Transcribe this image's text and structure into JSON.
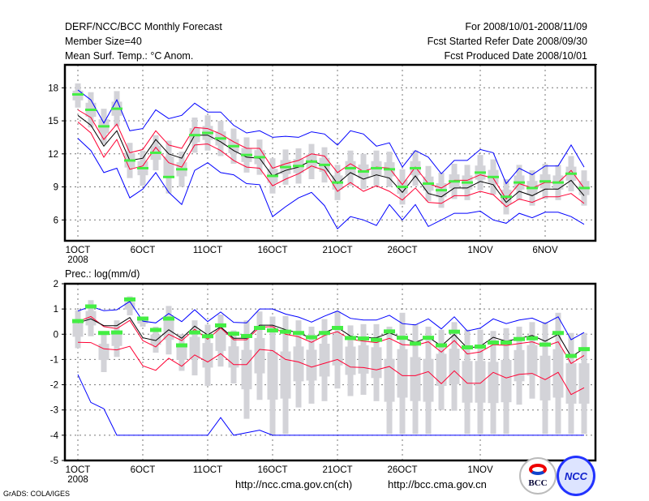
{
  "header": {
    "title": "DERF/NCC/BCC Monthly Forecast",
    "member_size": "Member Size=40",
    "variable": "Mean Surf. Temp.: °C Anom.",
    "period": "For 2008/10/01-2008/11/09",
    "started": "Fcst Started Refer Date 2008/09/30",
    "produced": "Fcst Produced Date 2008/10/01"
  },
  "footer": {
    "url_ncc": "http://ncc.cma.gov.cn(ch)",
    "url_bcc": "http://bcc.cma.gov.cn",
    "credit": "GrADS: COLA/IGES",
    "logo_bcc": "BCC",
    "logo_ncc": "NCC"
  },
  "colors": {
    "max_min": "#0000ff",
    "spread": "#ff0033",
    "mean": "#000000",
    "marker": "#44ee44",
    "box": "#d3d3d8"
  },
  "chart_data": [
    {
      "type": "line",
      "title": "Mean Surf. Temp.: °C Anom.",
      "ylabel": "",
      "ylim": [
        4.1,
        20.1
      ],
      "yticks": [
        6,
        9,
        12,
        15,
        18
      ],
      "ytick_labels": [
        "6",
        "9",
        "12",
        "15",
        "18"
      ],
      "xtick_days": [
        1,
        6,
        11,
        16,
        21,
        26,
        32,
        37
      ],
      "xtick_labels": [
        "1OCT",
        "6OCT",
        "11OCT",
        "16OCT",
        "21OCT",
        "26OCT",
        "1NOV",
        "6NOV"
      ],
      "xtick_year": "2008",
      "grid": true,
      "days": 40,
      "series": [
        {
          "name": "max",
          "color": "#0000ff",
          "values": [
            17.8,
            16.9,
            14.8,
            16.9,
            14.1,
            14.3,
            16.0,
            15.2,
            15.5,
            16.6,
            15.8,
            15.8,
            14.6,
            13.9,
            14.1,
            13.5,
            13.6,
            13.5,
            14.0,
            13.8,
            12.8,
            14.1,
            13.8,
            12.7,
            13.0,
            10.8,
            12.3,
            11.7,
            10.2,
            11.4,
            11.4,
            12.4,
            12.1,
            9.3,
            10.7,
            10.1,
            10.9,
            10.9,
            12.8,
            10.8
          ]
        },
        {
          "name": "upper",
          "color": "#ff0033",
          "values": [
            16.0,
            15.3,
            13.3,
            14.7,
            12.1,
            12.4,
            14.1,
            12.8,
            12.5,
            14.4,
            14.3,
            13.8,
            13.1,
            12.5,
            12.5,
            10.7,
            11.1,
            11.4,
            12.0,
            11.8,
            10.3,
            11.1,
            10.4,
            10.8,
            10.7,
            9.2,
            10.8,
            9.3,
            8.9,
            9.6,
            9.6,
            10.1,
            9.8,
            7.9,
            9.3,
            8.9,
            9.4,
            9.4,
            10.5,
            8.9
          ]
        },
        {
          "name": "mean",
          "color": "#000000",
          "values": [
            15.5,
            14.6,
            12.7,
            14.1,
            11.4,
            11.6,
            13.3,
            12.0,
            11.6,
            13.7,
            13.7,
            13.1,
            12.3,
            11.7,
            11.6,
            10.0,
            10.5,
            10.8,
            11.4,
            10.9,
            9.3,
            10.3,
            9.7,
            10.1,
            9.8,
            8.5,
            10.0,
            8.4,
            8.1,
            8.9,
            8.9,
            9.5,
            9.2,
            7.6,
            8.6,
            8.2,
            8.8,
            8.8,
            9.6,
            8.2
          ]
        },
        {
          "name": "lower",
          "color": "#ff0033",
          "values": [
            14.9,
            13.9,
            11.7,
            13.3,
            10.6,
            10.9,
            12.6,
            11.2,
            10.8,
            12.8,
            12.9,
            12.3,
            11.4,
            10.8,
            10.7,
            9.1,
            9.7,
            10.2,
            10.9,
            10.5,
            8.6,
            9.4,
            8.6,
            9.1,
            8.6,
            7.8,
            8.9,
            7.6,
            7.5,
            8.2,
            8.2,
            8.6,
            8.3,
            7.2,
            7.9,
            7.6,
            8.1,
            8.1,
            8.4,
            7.5
          ]
        },
        {
          "name": "min",
          "color": "#0000ff",
          "values": [
            13.4,
            12.3,
            10.3,
            10.7,
            8.0,
            8.8,
            10.3,
            8.5,
            7.4,
            10.5,
            11.2,
            10.3,
            10.1,
            9.3,
            9.2,
            6.3,
            7.2,
            8.0,
            8.5,
            7.3,
            5.2,
            6.3,
            6.0,
            5.5,
            7.4,
            6.0,
            7.4,
            5.4,
            6.0,
            6.6,
            6.6,
            6.8,
            6.0,
            5.7,
            6.6,
            6.2,
            6.7,
            6.7,
            6.3,
            5.6
          ]
        }
      ],
      "markers": [
        17.4,
        16.0,
        14.5,
        16.1,
        11.4,
        10.7,
        12.1,
        9.9,
        10.6,
        13.7,
        13.9,
        13.4,
        12.7,
        11.9,
        11.7,
        10.0,
        10.8,
        10.9,
        11.3,
        11.0,
        9.4,
        10.7,
        10.4,
        10.7,
        10.6,
        9.0,
        10.7,
        9.3,
        8.7,
        9.5,
        9.4,
        10.3,
        9.9,
        8.1,
        9.4,
        8.9,
        9.5,
        9.4,
        10.2,
        8.9
      ],
      "box_low": [
        16.2,
        14.4,
        12.9,
        14.5,
        9.8,
        9.1,
        10.5,
        8.4,
        9.0,
        12.1,
        12.3,
        11.8,
        11.1,
        10.3,
        10.1,
        8.4,
        9.2,
        9.3,
        9.7,
        9.4,
        7.8,
        9.1,
        8.8,
        9.1,
        9.0,
        7.4,
        9.1,
        7.7,
        7.1,
        7.9,
        7.8,
        8.7,
        8.3,
        6.5,
        7.8,
        7.3,
        7.9,
        7.8,
        8.6,
        7.3
      ],
      "box_high": [
        18.4,
        17.6,
        16.1,
        17.7,
        13.0,
        12.3,
        13.7,
        13.2,
        12.2,
        15.3,
        15.5,
        15.0,
        14.3,
        13.5,
        13.3,
        11.6,
        12.4,
        12.5,
        12.9,
        12.6,
        11.0,
        12.3,
        12.0,
        12.3,
        12.2,
        10.6,
        12.3,
        10.9,
        10.3,
        11.1,
        11.0,
        11.9,
        11.5,
        9.7,
        11.0,
        10.5,
        11.1,
        11.0,
        11.8,
        10.5
      ]
    },
    {
      "type": "line",
      "title": "Prec.: log(mm/d)",
      "ylabel": "",
      "ylim": [
        -5,
        2
      ],
      "yticks": [
        -5,
        -4,
        -3,
        -2,
        -1,
        0,
        1,
        2
      ],
      "ytick_labels": [
        "-5",
        "-4",
        "-3",
        "-2",
        "-1",
        "0",
        "1",
        "2"
      ],
      "xtick_days": [
        1,
        6,
        11,
        16,
        21,
        26,
        32
      ],
      "xtick_labels": [
        "1OCT",
        "6OCT",
        "11OCT",
        "16OCT",
        "21OCT",
        "26OCT",
        "1NOV"
      ],
      "xtick_year": "2008",
      "grid": true,
      "days": 40,
      "series": [
        {
          "name": "max",
          "color": "#0000ff",
          "values": [
            0.92,
            1.1,
            0.93,
            0.97,
            1.3,
            0.52,
            0.45,
            0.82,
            0.5,
            0.97,
            0.5,
            0.88,
            0.47,
            0.45,
            1.0,
            1.0,
            0.8,
            0.68,
            0.48,
            0.72,
            0.92,
            0.63,
            0.56,
            0.56,
            0.75,
            0.42,
            0.37,
            0.61,
            0.21,
            0.69,
            0.13,
            0.24,
            0.61,
            0.42,
            0.56,
            0.64,
            0.42,
            0.69,
            -0.22,
            0.07
          ]
        },
        {
          "name": "upper",
          "color": "#ff0033",
          "values": [
            0.5,
            0.7,
            0.3,
            0.22,
            0.55,
            -0.25,
            -0.5,
            0.0,
            -0.25,
            0.2,
            -0.2,
            0.25,
            -0.22,
            -0.22,
            0.28,
            0.3,
            0.0,
            -0.1,
            -0.32,
            -0.05,
            0.1,
            -0.2,
            -0.27,
            -0.33,
            -0.16,
            -0.41,
            -0.44,
            -0.3,
            -0.71,
            -0.25,
            -0.78,
            -0.7,
            -0.41,
            -0.44,
            -0.37,
            -0.3,
            -0.48,
            -0.3,
            -1.16,
            -0.84
          ]
        },
        {
          "name": "mean",
          "color": "#000000",
          "values": [
            0.45,
            0.61,
            0.34,
            0.34,
            0.66,
            -0.14,
            -0.25,
            0.18,
            -0.16,
            0.32,
            -0.03,
            0.29,
            -0.16,
            -0.16,
            0.36,
            0.36,
            0.18,
            0.05,
            -0.16,
            0.07,
            0.27,
            -0.07,
            -0.14,
            -0.14,
            0.05,
            -0.14,
            -0.32,
            -0.12,
            -0.46,
            -0.01,
            -0.55,
            -0.48,
            -0.12,
            -0.28,
            -0.16,
            -0.05,
            -0.28,
            -0.01,
            -0.89,
            -0.57
          ]
        },
        {
          "name": "lower",
          "color": "#ff0033",
          "values": [
            -0.32,
            -0.33,
            -0.58,
            -0.62,
            -0.48,
            -1.25,
            -1.43,
            -0.95,
            -1.27,
            -0.82,
            -1.1,
            -0.77,
            -1.2,
            -1.2,
            -0.6,
            -0.65,
            -1.0,
            -1.1,
            -1.3,
            -1.15,
            -1.0,
            -1.3,
            -1.32,
            -1.41,
            -1.28,
            -1.64,
            -1.64,
            -1.48,
            -1.96,
            -1.45,
            -1.94,
            -1.94,
            -1.51,
            -1.73,
            -1.59,
            -1.55,
            -1.8,
            -1.51,
            -2.39,
            -2.12
          ]
        },
        {
          "name": "min",
          "color": "#0000ff",
          "values": [
            -1.6,
            -2.7,
            -2.95,
            -4,
            -4,
            -4,
            -4,
            -4,
            -4,
            -4,
            -4,
            -3.3,
            -4,
            -3.9,
            -3.8,
            -4,
            -4,
            -4,
            -4,
            -4,
            -4,
            -4,
            -4,
            -4,
            -4,
            -4,
            -4,
            -4,
            -4,
            -4,
            -4,
            -4,
            -4,
            -4,
            -4,
            -4,
            -4,
            -4,
            -4,
            -4
          ]
        }
      ],
      "markers": [
        0.52,
        1.1,
        0.05,
        0.07,
        1.38,
        0.62,
        0.17,
        0.62,
        -0.44,
        0.07,
        -0.08,
        0.35,
        0.02,
        -0.07,
        0.25,
        0.15,
        0.1,
        0.05,
        -0.12,
        0.05,
        0.25,
        -0.15,
        -0.17,
        -0.22,
        0.11,
        -0.14,
        -0.37,
        -0.14,
        -0.44,
        0.1,
        -0.52,
        -0.49,
        -0.33,
        -0.33,
        -0.19,
        -0.16,
        -0.41,
        0.05,
        -0.86,
        -0.59
      ],
      "box_low": [
        -0.55,
        -0.08,
        -1.5,
        -0.9,
        0.75,
        0.3,
        -0.73,
        -0.8,
        -1.45,
        -1.63,
        -2.05,
        -1.28,
        -1.95,
        -3.35,
        -2.6,
        -4,
        -3.95,
        -2.9,
        -2.75,
        -2.65,
        -2.15,
        -2.45,
        -2.4,
        -2.65,
        -3.95,
        -3.95,
        -3.95,
        -3.95,
        -3.0,
        -3.03,
        -3.95,
        -3.95,
        -3.95,
        -3.95,
        -2.79,
        -2.55,
        -3.95,
        -3.95,
        -3.95,
        -3.95
      ],
      "box_high": [
        0.95,
        1.35,
        0.1,
        0.55,
        1.5,
        0.7,
        0.3,
        1.12,
        0.0,
        0.55,
        0.38,
        0.78,
        0.15,
        0.55,
        0.9,
        0.7,
        0.72,
        0.55,
        0.3,
        0.6,
        0.9,
        0.35,
        0.4,
        0.4,
        0.3,
        0.85,
        0.4,
        0.3,
        0.18,
        0.48,
        0.18,
        0.18,
        0.13,
        0.24,
        0.3,
        0.48,
        0.48,
        0.85,
        0.05,
        0.05
      ]
    }
  ]
}
